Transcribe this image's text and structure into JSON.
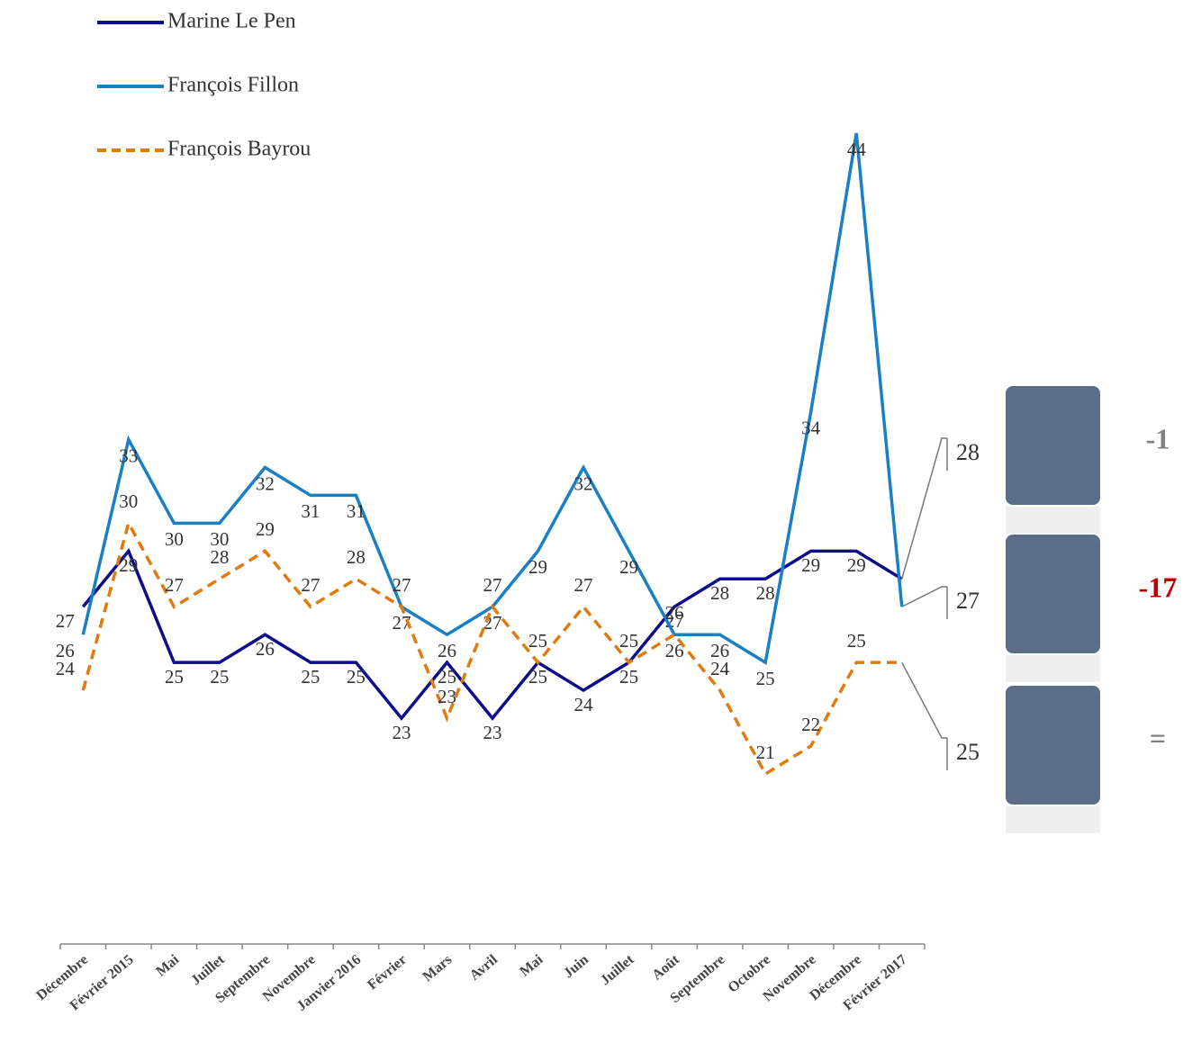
{
  "chart_data": {
    "type": "line",
    "categories": [
      "Décembre",
      "Février 2015",
      "Mai",
      "Juillet",
      "Septembre",
      "Novembre",
      "Janvier 2016",
      "Février",
      "Mars",
      "Avril",
      "Mai",
      "Juin",
      "Juillet",
      "Août",
      "Septembre",
      "Octobre",
      "Novembre",
      "Décembre",
      "Février 2017"
    ],
    "series": [
      {
        "name": "Marine Le Pen",
        "color": "#0d0d8c",
        "dashed": false,
        "values": [
          27,
          29,
          25,
          25,
          26,
          25,
          25,
          23,
          25,
          23,
          25,
          24,
          25,
          27,
          28,
          28,
          29,
          29,
          28
        ]
      },
      {
        "name": "François Fillon",
        "color": "#1b7fc4",
        "dashed": false,
        "values": [
          26,
          33,
          30,
          30,
          32,
          31,
          31,
          27,
          26,
          27,
          29,
          32,
          29,
          26,
          26,
          25,
          34,
          44,
          27
        ]
      },
      {
        "name": "François Bayrou",
        "color": "#e07b10",
        "dashed": true,
        "values": [
          24,
          30,
          27,
          28,
          29,
          27,
          28,
          27,
          23,
          27,
          25,
          27,
          25,
          26,
          24,
          21,
          22,
          25,
          25
        ]
      }
    ],
    "changes": [
      -1,
      -17,
      "="
    ],
    "change_colors": [
      "#808080",
      "#c00000",
      "#808080"
    ]
  }
}
